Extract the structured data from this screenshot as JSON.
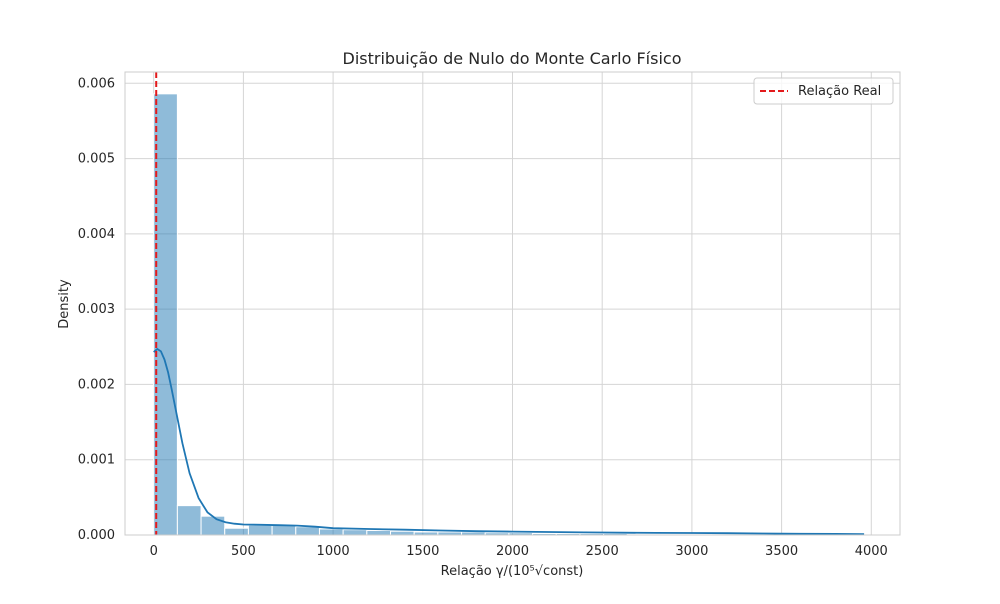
{
  "chart_data": {
    "type": "bar",
    "title": "Distribuição de Nulo do Monte Carlo Físico",
    "xlabel": "Relação γ/(10⁵√const)",
    "ylabel": "Density",
    "xlim": [
      -160,
      4160
    ],
    "ylim": [
      0,
      0.00615
    ],
    "xticks": [
      0,
      500,
      1000,
      1500,
      2000,
      2500,
      3000,
      3500,
      4000
    ],
    "xtick_labels": [
      "0",
      "500",
      "1000",
      "1500",
      "2000",
      "2500",
      "3000",
      "3500",
      "4000"
    ],
    "yticks": [
      0,
      0.001,
      0.002,
      0.003,
      0.004,
      0.005,
      0.006
    ],
    "ytick_labels": [
      "0.000",
      "0.001",
      "0.002",
      "0.003",
      "0.004",
      "0.005",
      "0.006"
    ],
    "grid": true,
    "legend_position": "top-right",
    "histogram": {
      "color": "#1f77b4",
      "bin_edges": [
        0,
        132,
        264,
        396,
        528,
        660,
        792,
        924,
        1056,
        1188,
        1320,
        1452,
        1584,
        1716,
        1848,
        1980,
        2112,
        2244,
        2376,
        2508,
        2640,
        2772,
        2904,
        3036,
        3168,
        3300,
        3432,
        3564,
        3696,
        3828,
        3960
      ],
      "densities": [
        0.00586,
        0.00039,
        0.00025,
        9e-05,
        0.00013,
        0.00013,
        0.00011,
        8e-05,
        7e-05,
        6e-05,
        5e-05,
        4e-05,
        4e-05,
        4e-05,
        3e-05,
        3e-05,
        2e-05,
        2e-05,
        2e-05,
        2e-05,
        1e-05,
        1e-05,
        1e-05,
        1e-05,
        1e-05,
        1e-05,
        1e-05,
        1e-05,
        1e-05,
        1e-05
      ]
    },
    "kde": {
      "color": "#1f77b4",
      "x": [
        0,
        20,
        40,
        60,
        80,
        100,
        130,
        160,
        200,
        250,
        300,
        350,
        400,
        450,
        500,
        600,
        700,
        800,
        900,
        1000,
        1200,
        1400,
        1600,
        1800,
        2000,
        2200,
        2400,
        2600,
        2800,
        3000,
        3200,
        3400,
        3600,
        3800,
        3960
      ],
      "y": [
        0.00243,
        0.00247,
        0.00244,
        0.00233,
        0.00216,
        0.00194,
        0.00158,
        0.00122,
        0.00082,
        0.00049,
        0.0003,
        0.00021,
        0.00017,
        0.00015,
        0.00014,
        0.000135,
        0.00013,
        0.000125,
        0.00011,
        9e-05,
        8e-05,
        7e-05,
        6e-05,
        5e-05,
        4.5e-05,
        4e-05,
        3.5e-05,
        3e-05,
        2.8e-05,
        2.7e-05,
        2.4e-05,
        2e-05,
        1.6e-05,
        1.4e-05,
        1.2e-05
      ]
    },
    "reference_line": {
      "label": "Relação Real",
      "x": 14,
      "color": "#e31a1c",
      "style": "dashed"
    }
  }
}
